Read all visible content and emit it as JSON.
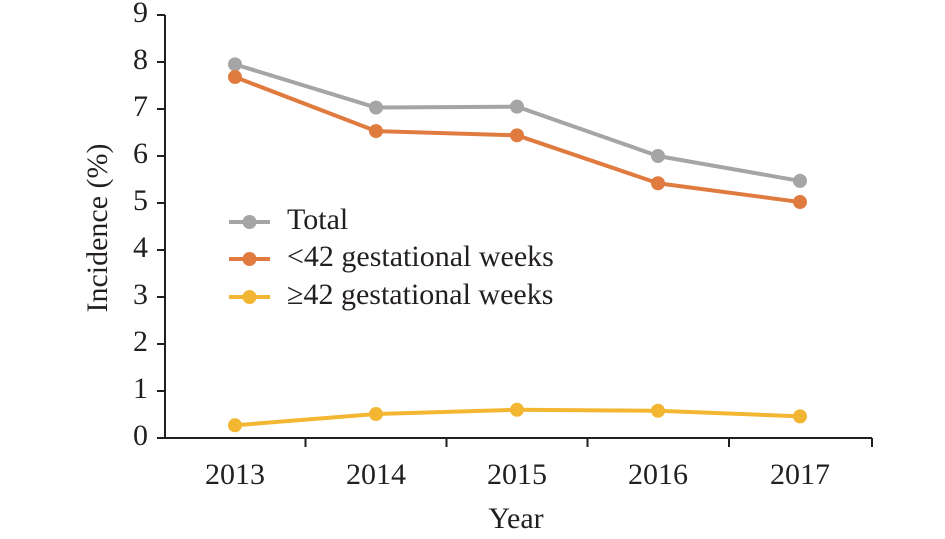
{
  "chart_data": {
    "type": "line",
    "title": "",
    "xlabel": "Year",
    "ylabel": "Incidence (%)",
    "categories": [
      "2013",
      "2014",
      "2015",
      "2016",
      "2017"
    ],
    "y_ticks": [
      "0",
      "1",
      "2",
      "3",
      "4",
      "5",
      "6",
      "7",
      "8",
      "9"
    ],
    "ylim": [
      0,
      9
    ],
    "grid": false,
    "legend_position": "center-left",
    "series": [
      {
        "name": "Total",
        "color": "#a5a5a5",
        "values": [
          7.95,
          7.03,
          7.05,
          6.0,
          5.47
        ]
      },
      {
        "name": "<42 gestational weeks",
        "color": "#e07b3f",
        "values": [
          7.68,
          6.53,
          6.44,
          5.42,
          5.02
        ]
      },
      {
        "name": "≥42 gestational weeks",
        "color": "#f2b632",
        "values": [
          0.27,
          0.51,
          0.6,
          0.58,
          0.46
        ]
      }
    ]
  }
}
